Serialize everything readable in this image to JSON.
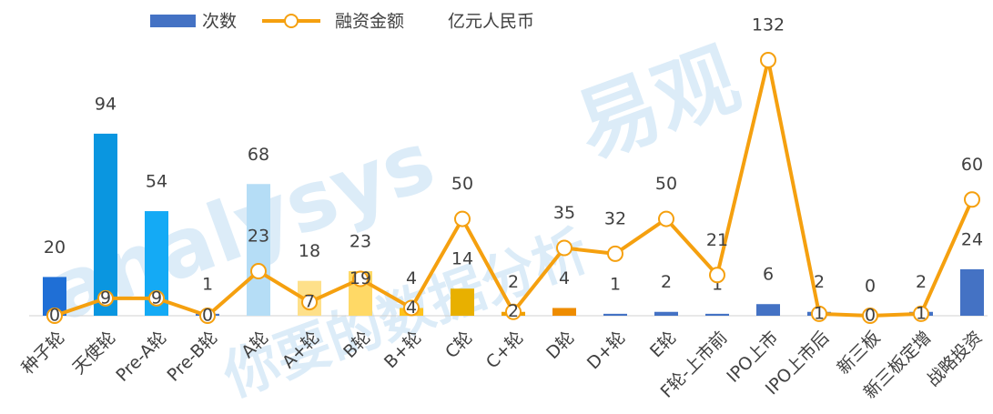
{
  "chart_data": {
    "type": "bar_line",
    "categories": [
      "种子轮",
      "天使轮",
      "Pre-A轮",
      "Pre-B轮",
      "A轮",
      "A+轮",
      "B轮",
      "B+轮",
      "C轮",
      "C+轮",
      "D轮",
      "D+轮",
      "E轮",
      "F轮-上市前",
      "IPO上市",
      "IPO上市后",
      "新三板",
      "新三板定增",
      "战略投资"
    ],
    "series": [
      {
        "name": "次数",
        "color": "#4472c4",
        "type": "bar",
        "colors": [
          "#1f6fd6",
          "#0a96e0",
          "#14aaf5",
          "#4472c4",
          "#b5ddf6",
          "#fee08a",
          "#ffd966",
          "#ffc21a",
          "#e8b000",
          "#f0a000",
          "#ee8c00",
          "#4472c4",
          "#4472c4",
          "#4472c4",
          "#4472c4",
          "#4472c4",
          "#4472c4",
          "#4472c4",
          "#4472c4"
        ],
        "values": [
          20,
          94,
          54,
          1,
          68,
          18,
          23,
          4,
          14,
          2,
          4,
          1,
          2,
          1,
          6,
          2,
          0,
          2,
          24
        ]
      },
      {
        "name": "融资金额",
        "color": "#f5a00f",
        "type": "line",
        "values": [
          0,
          9,
          9,
          0,
          23,
          7,
          19,
          4,
          50,
          2,
          35,
          32,
          50,
          21,
          132,
          1,
          0,
          1,
          60
        ]
      }
    ],
    "unit": "亿元人民币",
    "watermark": [
      "易观",
      "analysys",
      "你要的数据分析"
    ],
    "ylim": [
      0,
      140
    ]
  }
}
